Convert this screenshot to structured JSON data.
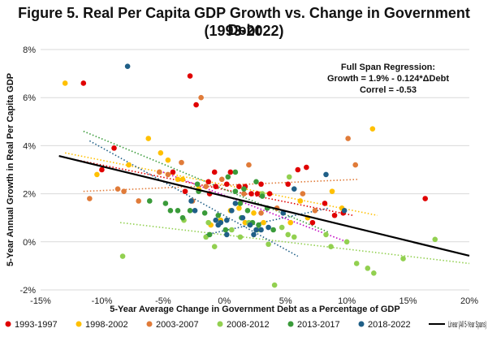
{
  "chart_data": {
    "type": "scatter",
    "title": "Figure 5. Real Per Capita GDP Growth vs. Change in Government Debt",
    "subtitle": "(1993-2022)",
    "xlabel": "5-Year Average Change in Government Debt as a Percentage of GDP",
    "ylabel": "5-Year Annual Growth in Real Per Capita GDP",
    "xlim": [
      -15,
      20
    ],
    "ylim": [
      -2,
      8
    ],
    "x_tick_labels": [
      "-15%",
      "-10%",
      "-5%",
      "0%",
      "5%",
      "10%",
      "15%",
      "20%"
    ],
    "y_tick_labels": [
      "-2%",
      "0%",
      "2%",
      "4%",
      "6%",
      "8%"
    ],
    "grid": "horizontal",
    "legend_position": "bottom",
    "annotation": [
      "Full Span Regression:",
      "Growth = 1.9% - 0.124*ΔDebt",
      "Correl = -0.53"
    ],
    "series": [
      {
        "name": "1993-1997",
        "color": "#e00000",
        "points": [
          [
            -11.5,
            6.6
          ],
          [
            -10,
            3.0
          ],
          [
            -9,
            3.9
          ],
          [
            -2.8,
            6.9
          ],
          [
            -2.3,
            5.7
          ],
          [
            -4.2,
            2.9
          ],
          [
            -3.2,
            2.1
          ],
          [
            -1.3,
            2.5
          ],
          [
            -0.7,
            2.3
          ],
          [
            -1.2,
            2.0
          ],
          [
            0.2,
            2.4
          ],
          [
            0.5,
            2.9
          ],
          [
            1.2,
            2.3
          ],
          [
            1.7,
            2.3
          ],
          [
            2.2,
            2.0
          ],
          [
            3.0,
            2.4
          ],
          [
            3.7,
            2.0
          ],
          [
            5.2,
            2.4
          ],
          [
            6.0,
            3.0
          ],
          [
            6.7,
            3.1
          ],
          [
            7.2,
            0.8
          ],
          [
            8.2,
            1.6
          ],
          [
            9.0,
            1.1
          ],
          [
            9.7,
            1.2
          ],
          [
            16.4,
            1.8
          ],
          [
            2.7,
            2.0
          ],
          [
            -0.8,
            2.9
          ]
        ]
      },
      {
        "name": "1998-2002",
        "color": "#ffc000",
        "points": [
          [
            -13,
            6.6
          ],
          [
            -10.4,
            2.8
          ],
          [
            -7.8,
            3.2
          ],
          [
            -5.2,
            3.7
          ],
          [
            -4.6,
            3.4
          ],
          [
            -5.3,
            2.9
          ],
          [
            -3.4,
            2.6
          ],
          [
            -2.1,
            2.2
          ],
          [
            -1.1,
            0.7
          ],
          [
            0.5,
            1.3
          ],
          [
            1.2,
            1.4
          ],
          [
            1.7,
            0.8
          ],
          [
            2.4,
            1.2
          ],
          [
            3.2,
            0.8
          ],
          [
            5.4,
            0.8
          ],
          [
            6.2,
            1.7
          ],
          [
            6.8,
            1.0
          ],
          [
            8.8,
            2.1
          ],
          [
            9.6,
            1.4
          ],
          [
            12.1,
            4.7
          ],
          [
            -6.2,
            4.3
          ],
          [
            -0.3,
            0.9
          ],
          [
            -3.8,
            2.6
          ]
        ]
      },
      {
        "name": "2003-2007",
        "color": "#e07b39",
        "points": [
          [
            -1.9,
            6.0
          ],
          [
            -11,
            1.8
          ],
          [
            -8.7,
            2.2
          ],
          [
            -8.2,
            2.1
          ],
          [
            -7,
            1.7
          ],
          [
            -5.3,
            2.9
          ],
          [
            -4.6,
            2.8
          ],
          [
            -3.5,
            3.3
          ],
          [
            -2.6,
            1.7
          ],
          [
            -0.2,
            2.6
          ],
          [
            1.6,
            2.0
          ],
          [
            3.0,
            1.2
          ],
          [
            4.3,
            1.4
          ],
          [
            6.4,
            2.0
          ],
          [
            7.4,
            1.3
          ],
          [
            10.1,
            4.3
          ],
          [
            10.7,
            3.2
          ],
          [
            2.0,
            3.2
          ],
          [
            -1.5,
            2.3
          ]
        ]
      },
      {
        "name": "2008-2012",
        "color": "#92d050",
        "points": [
          [
            -8.3,
            -0.6
          ],
          [
            -3.3,
            0.9
          ],
          [
            -1.3,
            0.8
          ],
          [
            -0.8,
            -0.2
          ],
          [
            0.6,
            0.5
          ],
          [
            1.3,
            0.2
          ],
          [
            2.0,
            0.8
          ],
          [
            2.7,
            0.5
          ],
          [
            3.6,
            -0.1
          ],
          [
            4.1,
            -1.8
          ],
          [
            4.7,
            0.6
          ],
          [
            5.2,
            0.3
          ],
          [
            5.3,
            2.7
          ],
          [
            5.7,
            0.2
          ],
          [
            8.3,
            0.3
          ],
          [
            8.7,
            -0.2
          ],
          [
            10.0,
            0.0
          ],
          [
            10.8,
            -0.9
          ],
          [
            11.7,
            -1.1
          ],
          [
            12.2,
            -1.3
          ],
          [
            14.6,
            -0.7
          ],
          [
            17.2,
            0.1
          ],
          [
            -1.5,
            0.2
          ],
          [
            3.1,
            2.0
          ]
        ]
      },
      {
        "name": "2013-2017",
        "color": "#3a9b3a",
        "points": [
          [
            -4.8,
            1.6
          ],
          [
            -4.4,
            1.3
          ],
          [
            -3.8,
            1.3
          ],
          [
            -3.4,
            1.0
          ],
          [
            -2.8,
            1.3
          ],
          [
            -2.1,
            2.1
          ],
          [
            -1.6,
            1.2
          ],
          [
            -1.2,
            0.3
          ],
          [
            -0.5,
            1.1
          ],
          [
            0.3,
            2.7
          ],
          [
            0.9,
            2.1
          ],
          [
            1.3,
            1.6
          ],
          [
            1.6,
            2.2
          ],
          [
            1.9,
            1.3
          ],
          [
            2.3,
            0.8
          ],
          [
            2.8,
            0.7
          ],
          [
            3.1,
            1.9
          ],
          [
            3.5,
            1.4
          ],
          [
            4.0,
            0.5
          ],
          [
            -6.1,
            1.7
          ],
          [
            0.1,
            0.5
          ],
          [
            0.9,
            2.9
          ],
          [
            -2.2,
            2.4
          ],
          [
            2.6,
            2.5
          ],
          [
            1.4,
            1.0
          ]
        ]
      },
      {
        "name": "2018-2022",
        "color": "#1f5f87",
        "points": [
          [
            -7.9,
            7.3
          ],
          [
            -2.7,
            1.7
          ],
          [
            -2.4,
            1.3
          ],
          [
            -0.7,
            0.9
          ],
          [
            -0.3,
            0.8
          ],
          [
            0.2,
            0.9
          ],
          [
            0.6,
            1.3
          ],
          [
            0.9,
            1.6
          ],
          [
            1.5,
            1.0
          ],
          [
            2.1,
            0.7
          ],
          [
            2.6,
            0.5
          ],
          [
            3.0,
            0.5
          ],
          [
            3.6,
            0.6
          ],
          [
            4.8,
            1.2
          ],
          [
            5.7,
            2.2
          ],
          [
            8.3,
            2.8
          ],
          [
            9.8,
            1.3
          ],
          [
            -0.5,
            0.7
          ],
          [
            2.4,
            0.3
          ],
          [
            0.2,
            0.3
          ]
        ]
      }
    ],
    "fit_lines": [
      {
        "series": "1993-1997",
        "x1": -12.0,
        "y1": 3.4,
        "x2": 10.5,
        "y2": 1.1,
        "style": "dotted"
      },
      {
        "series": "1998-2002",
        "x1": -13.0,
        "y1": 3.7,
        "x2": 12.5,
        "y2": 1.1,
        "style": "dotted"
      },
      {
        "series": "2003-2007",
        "x1": -11.5,
        "y1": 2.1,
        "x2": 11.0,
        "y2": 2.6,
        "style": "dotted"
      },
      {
        "series": "2008-2012",
        "x1": -8.5,
        "y1": 0.8,
        "x2": 20.0,
        "y2": -0.9,
        "style": "dotted"
      },
      {
        "series": "2013-2017",
        "x1": -11.5,
        "y1": 4.6,
        "x2": 8.5,
        "y2": 0.4,
        "style": "dotted"
      },
      {
        "series": "2018-2022",
        "x1": -11.0,
        "y1": 4.2,
        "x2": 6.0,
        "y2": -0.6,
        "style": "dotted"
      },
      {
        "series": "2018-2022",
        "x1": -1.5,
        "y1": 0.3,
        "x2": 8.5,
        "y2": 1.4,
        "style": "dotted"
      },
      {
        "series": "2008-2012",
        "x1": -5.0,
        "y1": 2.9,
        "x2": 10.0,
        "y2": 0.0,
        "style": "dotted-purple"
      }
    ],
    "linear_fit": {
      "name": "Linear (All 5-Year Spans)",
      "intercept": 1.9,
      "slope": -0.124,
      "x_start": -13.5,
      "x_end": 20
    }
  }
}
